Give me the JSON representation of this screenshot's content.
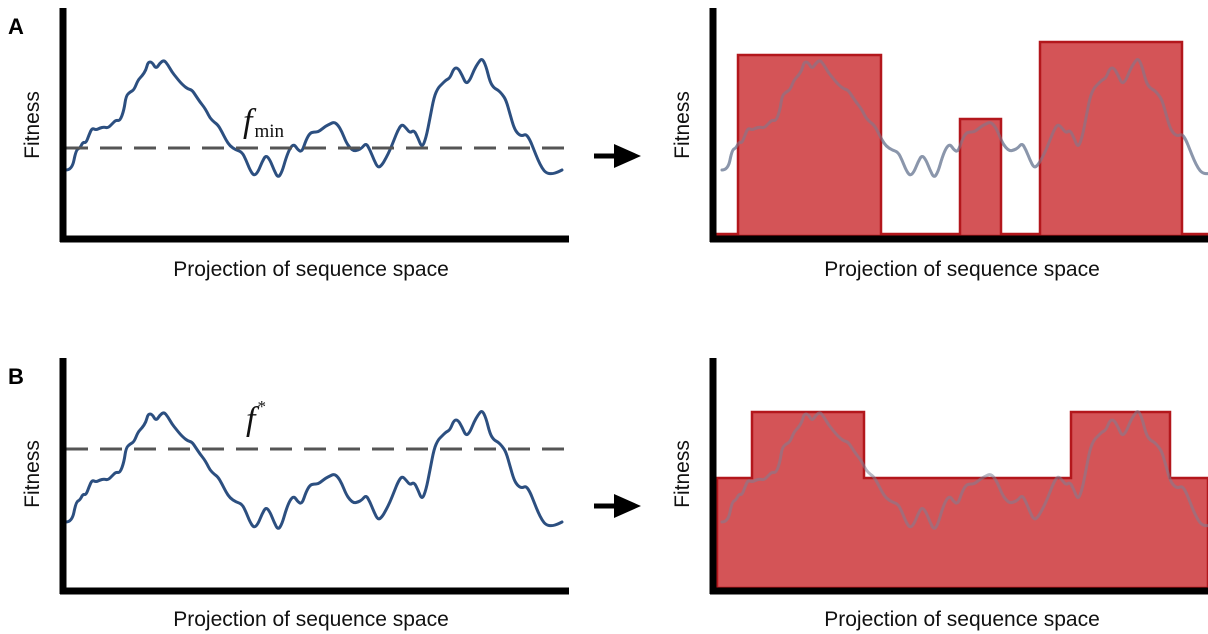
{
  "panels": [
    {
      "label": "A",
      "left_plot": {
        "ylabel": "Fitness",
        "xlabel": "Projection of sequence space",
        "threshold_symbol": "f",
        "threshold_sub": "min",
        "threshold_sup": ""
      },
      "right_plot": {
        "ylabel": "Fitness",
        "xlabel": "Projection of sequence space"
      }
    },
    {
      "label": "B",
      "left_plot": {
        "ylabel": "Fitness",
        "xlabel": "Projection of sequence space",
        "threshold_symbol": "f",
        "threshold_sub": "",
        "threshold_sup": "*"
      },
      "right_plot": {
        "ylabel": "Fitness",
        "xlabel": "Projection of sequence space"
      }
    }
  ],
  "colors": {
    "axis": "#000000",
    "landscape": "#2c4f80",
    "landscape_faded": "#9fb2c6",
    "threshold": "#555555",
    "fill": "#d24b4e",
    "fill_edge": "#b3171c",
    "arrow": "#000000"
  },
  "icons": [
    "right-arrow-icon"
  ]
}
